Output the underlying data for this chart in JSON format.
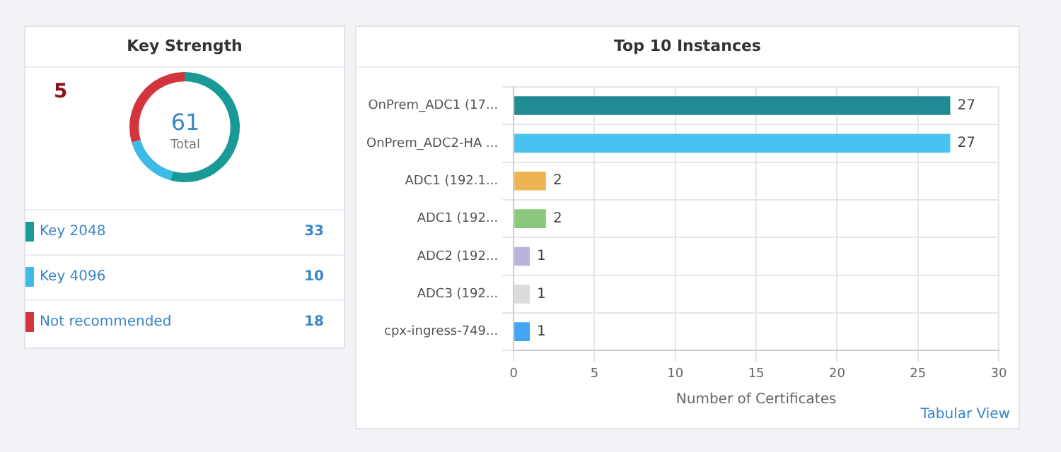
{
  "chart_data": [
    {
      "type": "donut",
      "title": "Key Strength",
      "categories": [
        "Key 2048",
        "Key 4096",
        "Not recommended"
      ],
      "values": [
        33,
        10,
        18
      ],
      "colors": [
        "#1a9a96",
        "#3dbbe6",
        "#d2363c"
      ],
      "legend": "bottom",
      "data_labels": true,
      "annotations": [
        "5",
        "61",
        "Total"
      ]
    },
    {
      "type": "bar",
      "orientation": "horizontal",
      "title": "Top 10 Instances",
      "xlabel": "Number of Certificates",
      "categories": [
        "OnPrem_ADC1 (17...",
        "OnPrem_ADC2-HA ...",
        "ADC1 (192.1...",
        "ADC1 (192...",
        "ADC2 (192...",
        "ADC3 (192...",
        "cpx-ingress-749..."
      ],
      "values": [
        27,
        27,
        2,
        2,
        1,
        1,
        1
      ],
      "colors": [
        "#218b93",
        "#48c2f0",
        "#edb453",
        "#8cc77e",
        "#b8b4dc",
        "#dcdcdc",
        "#44a4f5"
      ],
      "xlim": [
        0,
        30
      ],
      "xticks": [
        0,
        5,
        10,
        15,
        20,
        25,
        30
      ],
      "grid": true,
      "data_labels": true,
      "annotations": [
        "Tabular View"
      ]
    }
  ]
}
